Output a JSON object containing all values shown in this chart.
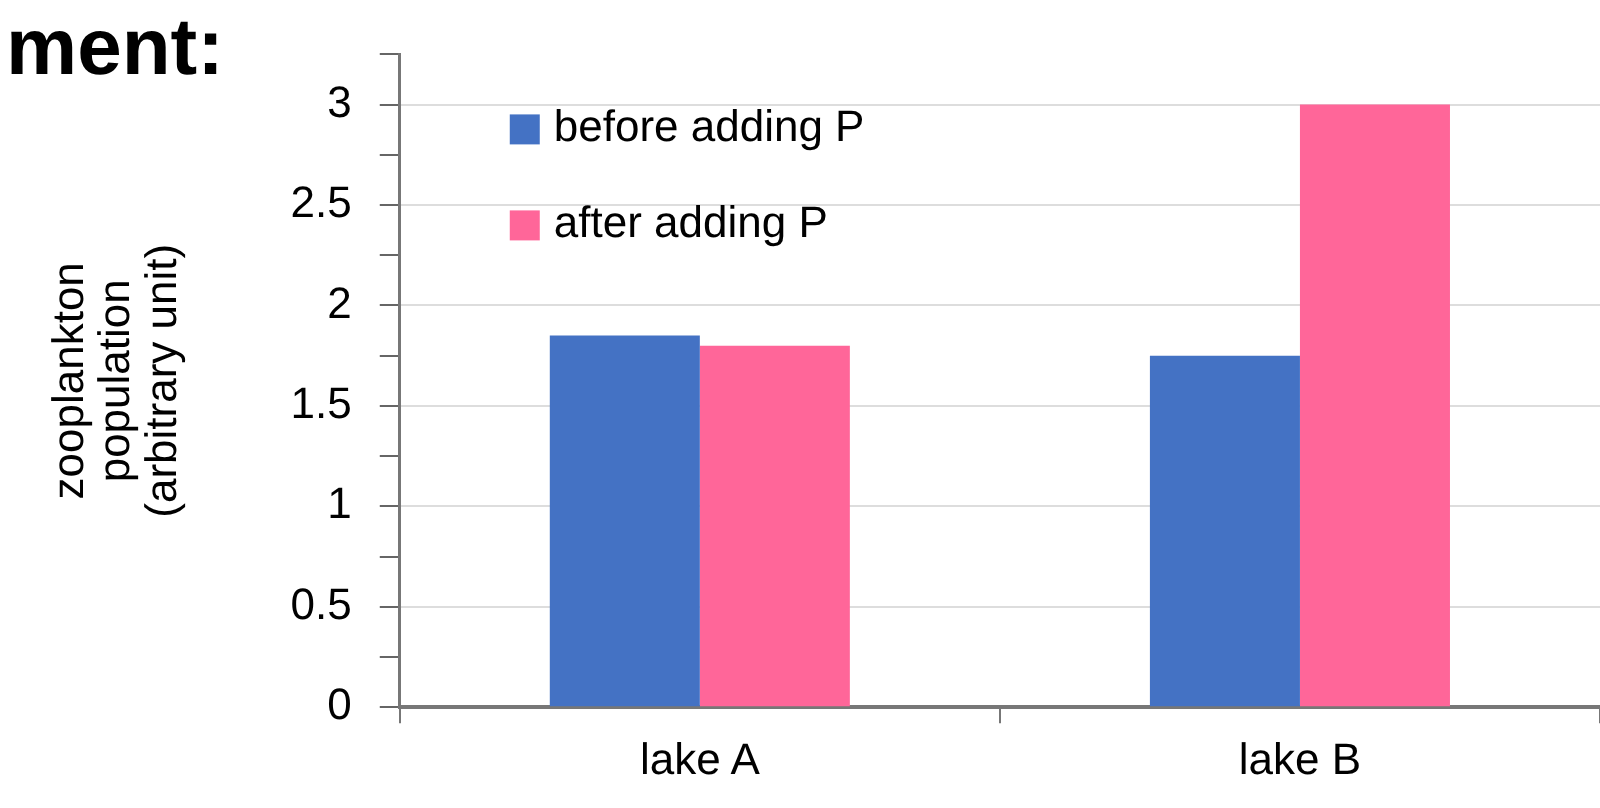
{
  "chart_data": {
    "type": "bar",
    "title": "ment:",
    "ylabel": "zooplankton\npopulation\n(arbitrary unit)",
    "categories": [
      "lake A",
      "lake B"
    ],
    "series": [
      {
        "name": "before adding P",
        "color": "#4472c4",
        "values": [
          1.85,
          1.75
        ]
      },
      {
        "name": "after adding P",
        "color": "#ff6699",
        "values": [
          1.8,
          3.0
        ]
      }
    ],
    "ylim": [
      0,
      3.25
    ],
    "yticks": [
      0,
      {
        "value": 0.25,
        "label": null
      },
      0.5,
      {
        "value": 0.75,
        "label": null
      },
      1,
      {
        "value": 1.25,
        "label": null
      },
      1.5,
      {
        "value": 1.75,
        "label": null
      },
      2,
      {
        "value": 2.25,
        "label": null
      },
      2.5,
      {
        "value": 2.75,
        "label": null
      },
      3,
      {
        "value": 3.25,
        "label": null
      }
    ],
    "grid": "y",
    "legend": "top left"
  }
}
